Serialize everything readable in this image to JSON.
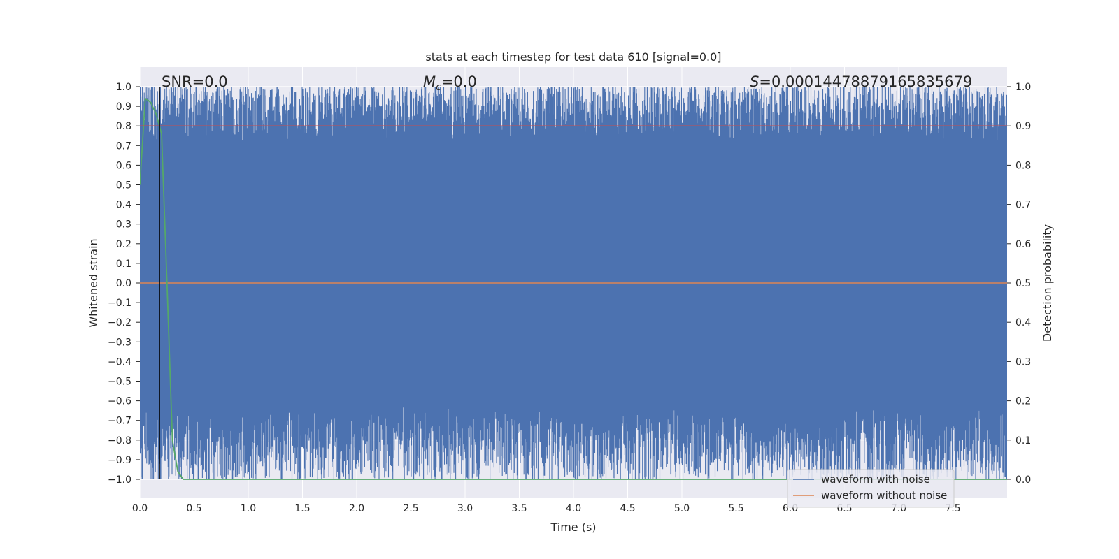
{
  "chart_data": {
    "type": "line",
    "title": "stats at each timestep for test data 610 [signal=0.0]",
    "xlabel": "Time (s)",
    "ylabel": "Whitened strain",
    "y2label": "Detection probability",
    "xlim": [
      0.0,
      8.0
    ],
    "ylim": [
      -1.1,
      1.1
    ],
    "y2lim": [
      -0.05,
      1.05
    ],
    "x_ticks": [
      "0.0",
      "0.5",
      "1.0",
      "1.5",
      "2.0",
      "2.5",
      "3.0",
      "3.5",
      "4.0",
      "4.5",
      "5.0",
      "5.5",
      "6.0",
      "6.5",
      "7.0",
      "7.5"
    ],
    "y_ticks": [
      "1.0",
      "0.9",
      "0.8",
      "0.7",
      "0.6",
      "0.5",
      "0.4",
      "0.3",
      "0.2",
      "0.1",
      "0.0",
      "−0.1",
      "−0.2",
      "−0.3",
      "−0.4",
      "−0.5",
      "−0.6",
      "−0.7",
      "−0.8",
      "−0.9",
      "−1.0"
    ],
    "y2_ticks": [
      "1.0",
      "0.9",
      "0.8",
      "0.7",
      "0.6",
      "0.5",
      "0.4",
      "0.3",
      "0.2",
      "0.1",
      "0.0"
    ],
    "grid": true,
    "legend_position": "lower-right",
    "annotations": {
      "snr": "SNR=0.0",
      "mc_symbol": "M",
      "mc_sub": "c",
      "mc_value": "=0.0",
      "s_symbol": "S",
      "s_value": "=0.00014478879165835679"
    },
    "series": [
      {
        "name": "waveform with noise",
        "color": "#4c72b0",
        "axis": "left",
        "description": "dense noise oscillating between about -1.0 and 1.0 over 0-8 s"
      },
      {
        "name": "waveform without noise",
        "color": "#dd8452",
        "axis": "left",
        "values": {
          "x": [
            0.0,
            8.0
          ],
          "y": [
            0.0,
            0.0
          ]
        }
      },
      {
        "name": "",
        "color": "#55a868",
        "axis": "right",
        "values": {
          "x": [
            0.0,
            0.05,
            0.1,
            0.15,
            0.2,
            0.25,
            0.3,
            0.35,
            0.4,
            8.0
          ],
          "y": [
            0.75,
            0.97,
            0.96,
            0.93,
            0.88,
            0.5,
            0.1,
            0.02,
            0.0,
            0.0
          ]
        }
      },
      {
        "name": "",
        "color": "#c44e52",
        "axis": "right",
        "values": {
          "x": [
            0.0,
            8.0
          ],
          "y": [
            0.9,
            0.9
          ]
        }
      }
    ],
    "vertical_markers": [
      {
        "x": 0.18,
        "color": "#000000"
      }
    ]
  }
}
